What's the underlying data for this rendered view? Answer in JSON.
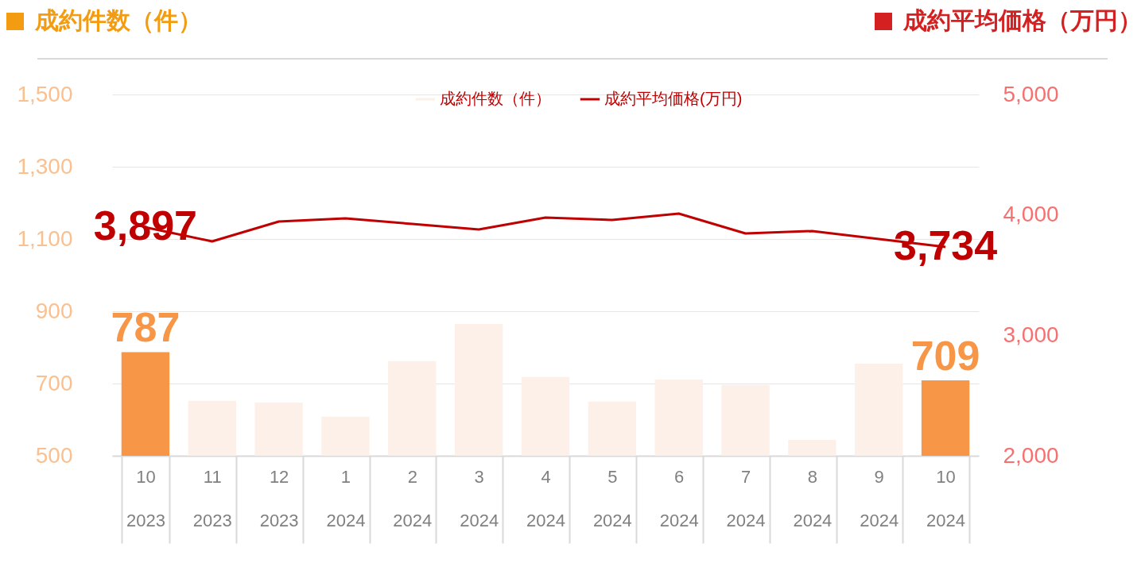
{
  "chart_data": {
    "type": "bar",
    "ylabel": "成約件数（件）",
    "y2label": "成約平均価格（万円）",
    "categories": [
      "10\n2023",
      "11\n2023",
      "12\n2023",
      "1\n2024",
      "2\n2024",
      "3\n2024",
      "4\n2024",
      "5\n2024",
      "6\n2024",
      "7\n2024",
      "8\n2024",
      "9\n2024",
      "10\n2024"
    ],
    "series": [
      {
        "name": "成約件数（件）",
        "color": "#fcf0e8",
        "colors": [
          "#f79646",
          "#fcf0e8",
          "#fcf0e8",
          "#fcf0e8",
          "#fcf0e8",
          "#fcf0e8",
          "#fcf0e8",
          "#fcf0e8",
          "#fcf0e8",
          "#fcf0e8",
          "#fcf0e8",
          "#fcf0e8",
          "#f79646"
        ],
        "values": [
          787,
          652,
          647,
          608,
          762,
          865,
          718,
          650,
          711,
          696,
          544,
          755,
          709
        ],
        "value_labels": [
          "787",
          null,
          null,
          null,
          null,
          null,
          null,
          null,
          null,
          null,
          null,
          null,
          "709"
        ]
      },
      {
        "name": "成約平均価格(万円)",
        "type": "line",
        "axis": "y2",
        "color": "#c00000",
        "values": [
          3897,
          3780,
          3945,
          3971,
          3925,
          3879,
          3978,
          3958,
          4011,
          3846,
          3866,
          3800,
          3734
        ],
        "value_labels": [
          "3,897",
          null,
          null,
          null,
          null,
          null,
          null,
          null,
          null,
          null,
          null,
          null,
          "3,734"
        ]
      }
    ],
    "ylim": [
      500,
      1500
    ],
    "yticks": [
      {
        "value": 500,
        "label": "500"
      },
      {
        "value": 700,
        "label": "700"
      },
      {
        "value": 900,
        "label": "900"
      },
      {
        "value": 1100,
        "label": "1,100"
      },
      {
        "value": 1300,
        "label": "1,300"
      },
      {
        "value": 1500,
        "label": "1,500"
      }
    ],
    "y2lim": [
      2000,
      5000
    ],
    "y2ticks": [
      {
        "value": 2000,
        "label": "2,000"
      },
      {
        "value": 3000,
        "label": "3,000"
      },
      {
        "value": 4000,
        "label": "4,000"
      },
      {
        "value": 5000,
        "label": "5,000"
      }
    ],
    "grid": "y",
    "legend": "top",
    "line_style": "solid",
    "marker": "none"
  }
}
